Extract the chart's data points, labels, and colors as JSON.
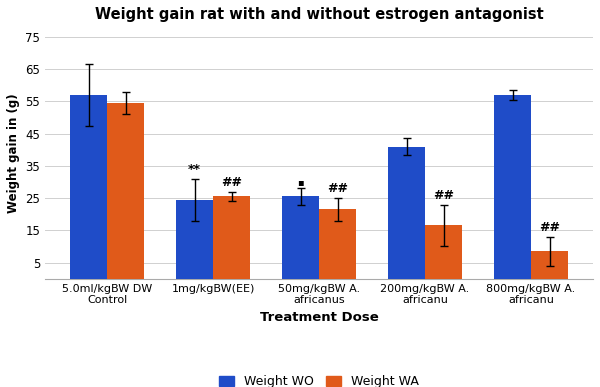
{
  "title": "Weight gain rat with and without estrogen antagonist",
  "xlabel": "Treatment Dose",
  "ylabel": "Weight gain in (g)",
  "categories": [
    "5.0ml/kgBW DW\nControl",
    "1mg/kgBW(EE)",
    "50mg/kgBW A.\nafricanus",
    "200mg/kgBW A.\nafricanu",
    "800mg/kgBW A.\nafricanu"
  ],
  "wo_values": [
    57.0,
    24.5,
    25.5,
    41.0,
    57.0
  ],
  "wa_values": [
    54.5,
    25.5,
    21.5,
    16.5,
    8.5
  ],
  "wo_errors": [
    9.5,
    6.5,
    2.5,
    2.5,
    1.5
  ],
  "wa_errors": [
    3.5,
    1.5,
    3.5,
    6.5,
    4.5
  ],
  "wo_color": "#1f4cc8",
  "wa_color": "#e05a1a",
  "ylim": [
    0,
    78
  ],
  "yticks": [
    5,
    15,
    25,
    35,
    45,
    55,
    65,
    75
  ],
  "bar_width": 0.35,
  "annotations_wo": [
    "",
    "**",
    "",
    "",
    ""
  ],
  "annotations_wa": [
    "",
    "##",
    "##",
    "##",
    "##"
  ],
  "annot_wo_special": [
    false,
    false,
    true,
    false,
    false
  ],
  "legend_wo": "Weight WO",
  "legend_wa": "Weight WA",
  "background_color": "#ffffff",
  "grid_color": "#d0d0d0"
}
